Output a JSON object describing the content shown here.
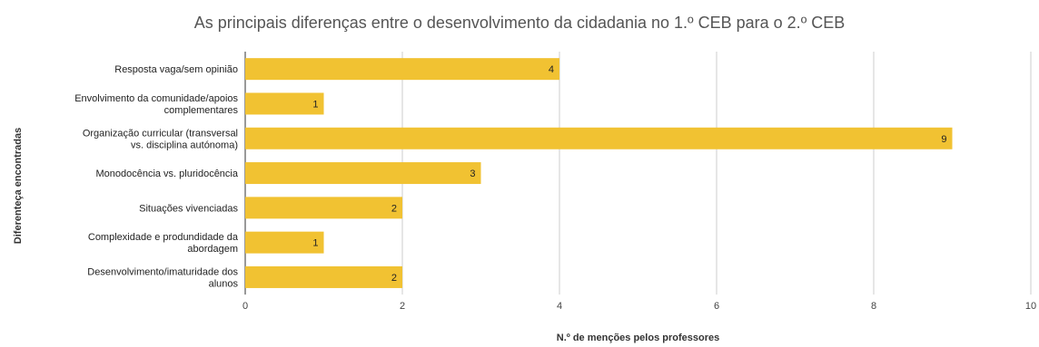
{
  "chart_data": {
    "type": "bar",
    "orientation": "horizontal",
    "title": "As principais diferenças entre o desenvolvimento da cidadania no 1.º CEB para o 2.º CEB",
    "xlabel": "N.º de menções pelos professores",
    "ylabel": "Diferenteça encontradas",
    "categories": [
      [
        "Resposta vaga/sem opinião"
      ],
      [
        "Envolvimento da comunidade/apoios",
        "complementares"
      ],
      [
        "Organização curricular (transversal",
        "vs. disciplina autónoma)"
      ],
      [
        "Monodocência vs. pluridocência"
      ],
      [
        "Situações vivenciadas"
      ],
      [
        "Complexidade e produndidade da",
        "abordagem"
      ],
      [
        "Desenvolvimento/imaturidade dos",
        "alunos"
      ]
    ],
    "values": [
      4,
      1,
      9,
      3,
      2,
      1,
      2
    ],
    "xlim": [
      0,
      10
    ],
    "xticks": [
      0,
      2,
      4,
      6,
      8,
      10
    ],
    "grid": true,
    "legend": "none",
    "bar_color": "#f1c232"
  }
}
